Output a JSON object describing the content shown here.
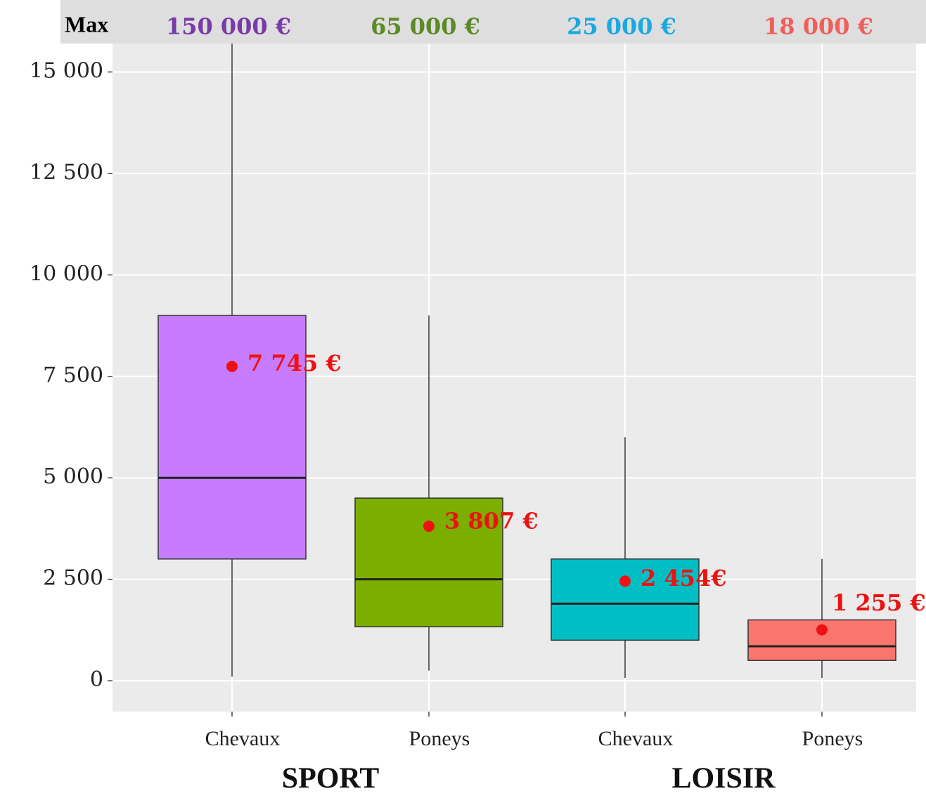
{
  "chart_data": {
    "type": "box",
    "categories": [
      "Chevaux",
      "Poneys",
      "Chevaux",
      "Poneys"
    ],
    "groups": [
      "SPORT",
      "LOISIR"
    ],
    "max": {
      "label": "Max",
      "values": [
        150000,
        65000,
        25000,
        18000
      ],
      "value_labels": [
        "150 000 €",
        "65 000 €",
        "25 000 €",
        "18 000 €"
      ],
      "colors": [
        "#7a3aa8",
        "#5c8a26",
        "#1aa9e0",
        "#f0605a"
      ]
    },
    "boxes": [
      {
        "whisker_low": 100,
        "q1": 3000,
        "median": 5000,
        "q3": 9000,
        "whisker_high": 16000,
        "mean": 7745,
        "mean_label": "7 745 €",
        "color": "#c77cff"
      },
      {
        "whisker_low": 250,
        "q1": 1330,
        "median": 2500,
        "q3": 4500,
        "whisker_high": 9000,
        "mean": 3807,
        "mean_label": "3 807 €",
        "color": "#7cae00"
      },
      {
        "whisker_low": 70,
        "q1": 1000,
        "median": 1900,
        "q3": 3000,
        "whisker_high": 6000,
        "mean": 2454,
        "mean_label": "2 454€",
        "color": "#00bfc4"
      },
      {
        "whisker_low": 70,
        "q1": 500,
        "median": 850,
        "q3": 1500,
        "whisker_high": 3000,
        "mean": 1255,
        "mean_label": "1 255 €",
        "color": "#f8766d"
      }
    ],
    "mean_color": "#ee1111",
    "ylim": [
      -760,
      15700
    ],
    "yticks": [
      0,
      {
        "value": 2500,
        "label": "2 500"
      },
      {
        "value": 5000,
        "label": "5 000"
      },
      {
        "value": 7500,
        "label": "7 500"
      },
      {
        "value": 10000,
        "label": "10 000"
      },
      {
        "value": 12500,
        "label": "12 500"
      },
      {
        "value": 15000,
        "label": "15 000"
      }
    ],
    "grid": true
  }
}
